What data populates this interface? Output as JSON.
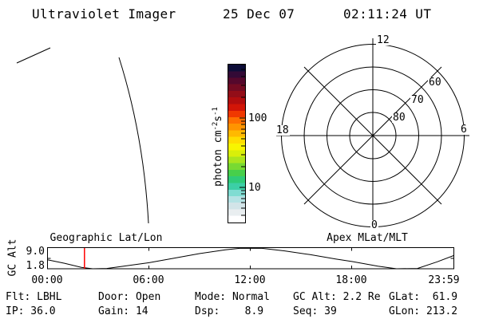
{
  "header": {
    "title": "Ultraviolet Imager",
    "date": "25 Dec 07",
    "time": "02:11:24 UT"
  },
  "geo_panel": {
    "title": "Geographic Lat/Lon"
  },
  "polar_panel": {
    "title": "Apex MLat/MLT",
    "mlt_top": "12",
    "mlt_left": "18",
    "mlt_right": "6",
    "mlt_bottom": "0",
    "ring_labels": [
      "80",
      "70",
      "60"
    ]
  },
  "colorbar": {
    "unit_base": "photon cm",
    "unit_sup1": "-2",
    "unit_mid": "s",
    "unit_sup2": "-1",
    "tick_labels": [
      "100",
      "10"
    ],
    "scale": "log",
    "stops_top_to_bottom": [
      "#0d0d38",
      "#330a36",
      "#55082c",
      "#740b22",
      "#930d18",
      "#b20d0e",
      "#d21507",
      "#f03800",
      "#ff6f00",
      "#ff9400",
      "#ffb900",
      "#ffdd00",
      "#f8f500",
      "#d9ef0a",
      "#abe51e",
      "#78da32",
      "#47cf4b",
      "#2fcb78",
      "#3ccfa6",
      "#7fdcd2",
      "#b4e2e4",
      "#d2e4e8",
      "#e9eef0",
      "#ffffff"
    ]
  },
  "gc_plot": {
    "ylabel": "GC Alt",
    "ymax_label": "9.0",
    "ymin_label": "1.8",
    "x_labels": [
      "00:00",
      "06:00",
      "12:00",
      "18:00",
      "23:59"
    ]
  },
  "status": {
    "rows": [
      [
        "Flt: LBHL",
        "Door: Open",
        "Mode: Normal",
        "GC Alt: 2.2 Re",
        "GLat:  61.9"
      ],
      [
        "IP: 36.0",
        "Gain: 14",
        "Dsp:    8.9",
        "Seq: 39",
        "GLon: 213.2"
      ]
    ]
  },
  "accent_colors": {
    "time_marker": "#ff0000"
  },
  "chart_data": [
    {
      "id": "gc_alt",
      "type": "line",
      "title": "GC Alt (geocentric altitude, Re) vs UT",
      "xlabel": "UT",
      "ylabel": "GC Alt",
      "ylim": [
        1.8,
        9.0
      ],
      "x_ticks": [
        "00:00",
        "06:00",
        "12:00",
        "18:00",
        "23:59"
      ],
      "points": [
        [
          "00:00",
          4.9
        ],
        [
          "01:00",
          3.7
        ],
        [
          "02:00",
          2.3
        ],
        [
          "02:40",
          1.8
        ],
        [
          "03:30",
          1.9
        ],
        [
          "04:30",
          2.7
        ],
        [
          "06:00",
          3.9
        ],
        [
          "07:30",
          5.5
        ],
        [
          "09:00",
          7.1
        ],
        [
          "10:30",
          8.4
        ],
        [
          "11:20",
          8.9
        ],
        [
          "12:40",
          8.9
        ],
        [
          "14:00",
          8.0
        ],
        [
          "15:30",
          6.7
        ],
        [
          "17:00",
          5.2
        ],
        [
          "18:00",
          4.3
        ],
        [
          "19:30",
          2.7
        ],
        [
          "20:36",
          1.8
        ],
        [
          "21:50",
          1.9
        ],
        [
          "23:00",
          4.2
        ],
        [
          "23:59",
          6.4
        ]
      ],
      "marker_time": "02:11",
      "marker_color": "#ff0000"
    },
    {
      "id": "apex_polar",
      "type": "polar-grid",
      "title": "Apex MLat/MLT",
      "rings_mlat": [
        80,
        70,
        60,
        50
      ],
      "ring_tick_labels": [
        "80",
        "70",
        "60"
      ],
      "mlt_axis_labels": [
        "12",
        "18",
        "6",
        "0"
      ]
    },
    {
      "id": "colorbar",
      "type": "colorbar",
      "unit": "photon cm-2 s-1",
      "scale": "log",
      "labeled_ticks": [
        100,
        10
      ]
    }
  ]
}
